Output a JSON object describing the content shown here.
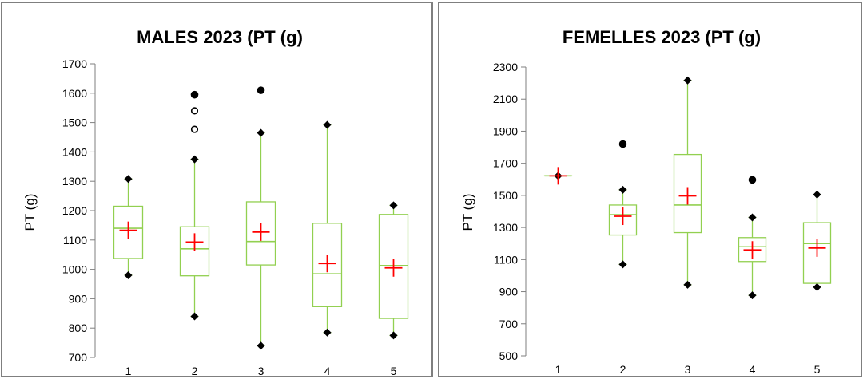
{
  "colors": {
    "box": "#92d050",
    "mean": "#ff0000",
    "whisker_end": "#000000",
    "outlier_filled": "#000000",
    "outlier_open": "#ffffff",
    "axis": "#7f7f7f",
    "frame": "#7f7f7f"
  },
  "chart_data": [
    {
      "type": "box",
      "title": "MALES 2023 (PT (g)",
      "xlabel": "",
      "ylabel": "PT (g)",
      "ylim": [
        700,
        1700
      ],
      "yticks": [
        700,
        800,
        900,
        1000,
        1100,
        1200,
        1300,
        1400,
        1500,
        1600,
        1700
      ],
      "categories": [
        "1",
        "2",
        "3",
        "4",
        "5"
      ],
      "grid": false,
      "boxes": [
        {
          "category": "1",
          "min": 980,
          "q1": 1037,
          "median": 1140,
          "q3": 1215,
          "max": 1308,
          "mean": 1133,
          "outliers": []
        },
        {
          "category": "2",
          "min": 840,
          "q1": 978,
          "median": 1070,
          "q3": 1145,
          "max": 1375,
          "mean": 1093,
          "outliers": [
            {
              "value": 1595,
              "filled": true
            },
            {
              "value": 1540,
              "filled": false
            },
            {
              "value": 1477,
              "filled": false
            }
          ]
        },
        {
          "category": "3",
          "min": 740,
          "q1": 1015,
          "median": 1095,
          "q3": 1230,
          "max": 1465,
          "mean": 1127,
          "outliers": [
            {
              "value": 1610,
              "filled": true
            }
          ]
        },
        {
          "category": "4",
          "min": 785,
          "q1": 873,
          "median": 985,
          "q3": 1157,
          "max": 1492,
          "mean": 1020,
          "outliers": []
        },
        {
          "category": "5",
          "min": 775,
          "q1": 833,
          "median": 1013,
          "q3": 1187,
          "max": 1218,
          "mean": 1005,
          "outliers": []
        }
      ]
    },
    {
      "type": "box",
      "title": "FEMELLES 2023 (PT (g)",
      "xlabel": "",
      "ylabel": "PT (g)",
      "ylim": [
        500,
        2300
      ],
      "yticks": [
        500,
        700,
        900,
        1100,
        1300,
        1500,
        1700,
        1900,
        2100,
        2300
      ],
      "categories": [
        "1",
        "2",
        "3",
        "4",
        "5"
      ],
      "grid": false,
      "boxes": [
        {
          "category": "1",
          "min": 1622,
          "q1": 1622,
          "median": 1622,
          "q3": 1622,
          "max": 1622,
          "mean": 1622,
          "outliers": []
        },
        {
          "category": "2",
          "min": 1070,
          "q1": 1253,
          "median": 1380,
          "q3": 1440,
          "max": 1535,
          "mean": 1370,
          "outliers": [
            {
              "value": 1820,
              "filled": true
            }
          ]
        },
        {
          "category": "3",
          "min": 943,
          "q1": 1268,
          "median": 1440,
          "q3": 1755,
          "max": 2217,
          "mean": 1497,
          "outliers": []
        },
        {
          "category": "4",
          "min": 877,
          "q1": 1088,
          "median": 1180,
          "q3": 1237,
          "max": 1363,
          "mean": 1160,
          "outliers": [
            {
              "value": 1597,
              "filled": true
            }
          ]
        },
        {
          "category": "5",
          "min": 928,
          "q1": 952,
          "median": 1200,
          "q3": 1330,
          "max": 1505,
          "mean": 1172,
          "outliers": []
        }
      ]
    }
  ]
}
